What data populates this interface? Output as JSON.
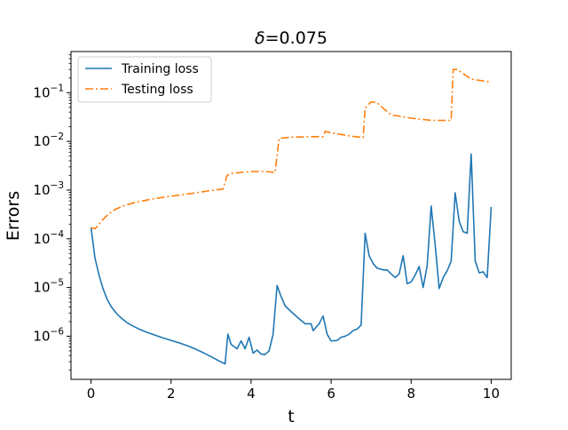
{
  "chart_data": {
    "type": "line",
    "title_symbol": "δ",
    "title_value": "=0.075",
    "xlabel": "t",
    "ylabel": "Errors",
    "xlim": [
      -0.5,
      10.5
    ],
    "ylim": [
      1.3e-07,
      0.7
    ],
    "yscale": "log",
    "grid": false,
    "legend_position": "upper-left",
    "xticks": [
      0,
      2,
      4,
      6,
      8,
      10
    ],
    "xtick_labels": [
      "0",
      "2",
      "4",
      "6",
      "8",
      "10"
    ],
    "yticks": [
      1e-06,
      1e-05,
      0.0001,
      0.001,
      0.01,
      0.1
    ],
    "ytick_bases": [
      "10",
      "10",
      "10",
      "10",
      "10",
      "10"
    ],
    "ytick_exponents": [
      "−6",
      "−5",
      "−4",
      "−3",
      "−2",
      "−1"
    ],
    "series": [
      {
        "name": "Training loss",
        "color": "#1f77b4",
        "style": "solid",
        "points": [
          [
            0.0,
            0.00017
          ],
          [
            0.1,
            4e-05
          ],
          [
            0.2,
            1.8e-05
          ],
          [
            0.3,
            9.5e-06
          ],
          [
            0.4,
            5.8e-06
          ],
          [
            0.5,
            4.1e-06
          ],
          [
            0.6,
            3.2e-06
          ],
          [
            0.7,
            2.6e-06
          ],
          [
            0.8,
            2.2e-06
          ],
          [
            0.9,
            1.9e-06
          ],
          [
            1.0,
            1.7e-06
          ],
          [
            1.2,
            1.4e-06
          ],
          [
            1.4,
            1.2e-06
          ],
          [
            1.6,
            1.05e-06
          ],
          [
            1.8,
            9.2e-07
          ],
          [
            2.0,
            8.2e-07
          ],
          [
            2.2,
            7.3e-07
          ],
          [
            2.4,
            6.4e-07
          ],
          [
            2.6,
            5.5e-07
          ],
          [
            2.8,
            4.6e-07
          ],
          [
            3.0,
            3.8e-07
          ],
          [
            3.2,
            3.1e-07
          ],
          [
            3.35,
            2.7e-07
          ],
          [
            3.42,
            1.1e-06
          ],
          [
            3.5,
            6.8e-07
          ],
          [
            3.65,
            5.5e-07
          ],
          [
            3.75,
            8e-07
          ],
          [
            3.85,
            5.5e-07
          ],
          [
            3.95,
            9.5e-07
          ],
          [
            4.05,
            4.5e-07
          ],
          [
            4.15,
            5.2e-07
          ],
          [
            4.25,
            4.3e-07
          ],
          [
            4.35,
            4.2e-07
          ],
          [
            4.45,
            5e-07
          ],
          [
            4.55,
            1.1e-06
          ],
          [
            4.65,
            1.1e-05
          ],
          [
            4.75,
            6.5e-06
          ],
          [
            4.85,
            4.2e-06
          ],
          [
            5.0,
            3.2e-06
          ],
          [
            5.1,
            2.7e-06
          ],
          [
            5.25,
            2.1e-06
          ],
          [
            5.35,
            1.8e-06
          ],
          [
            5.5,
            1.8e-06
          ],
          [
            5.55,
            1.3e-06
          ],
          [
            5.7,
            1.8e-06
          ],
          [
            5.8,
            2.6e-06
          ],
          [
            5.9,
            1.1e-06
          ],
          [
            6.0,
            8e-07
          ],
          [
            6.15,
            8.2e-07
          ],
          [
            6.25,
            9.5e-07
          ],
          [
            6.35,
            1e-06
          ],
          [
            6.45,
            1.1e-06
          ],
          [
            6.55,
            1.3e-06
          ],
          [
            6.65,
            1.4e-06
          ],
          [
            6.75,
            1.7e-06
          ],
          [
            6.85,
            0.00013
          ],
          [
            6.95,
            4.5e-05
          ],
          [
            7.05,
            3.1e-05
          ],
          [
            7.15,
            2.5e-05
          ],
          [
            7.3,
            2.3e-05
          ],
          [
            7.4,
            2.3e-05
          ],
          [
            7.5,
            1.9e-05
          ],
          [
            7.6,
            1.6e-05
          ],
          [
            7.7,
            1.9e-05
          ],
          [
            7.8,
            4.5e-05
          ],
          [
            7.9,
            1.2e-05
          ],
          [
            8.0,
            1.3e-05
          ],
          [
            8.1,
            1.8e-05
          ],
          [
            8.2,
            2.7e-05
          ],
          [
            8.3,
            1e-05
          ],
          [
            8.4,
            2.8e-05
          ],
          [
            8.5,
            0.00047
          ],
          [
            8.6,
            7.5e-05
          ],
          [
            8.7,
            9.5e-06
          ],
          [
            8.8,
            1.6e-05
          ],
          [
            8.9,
            2.2e-05
          ],
          [
            9.0,
            3.5e-05
          ],
          [
            9.1,
            0.00088
          ],
          [
            9.2,
            0.00023
          ],
          [
            9.3,
            0.00014
          ],
          [
            9.4,
            0.00013
          ],
          [
            9.5,
            0.0055
          ],
          [
            9.6,
            3.5e-05
          ],
          [
            9.7,
            2e-05
          ],
          [
            9.8,
            2.1e-05
          ],
          [
            9.9,
            1.6e-05
          ],
          [
            10.0,
            0.00045
          ]
        ]
      },
      {
        "name": "Testing loss",
        "color": "#ff7f0e",
        "style": "dashdot",
        "points": [
          [
            0.0,
            0.00017
          ],
          [
            0.1,
            0.00016
          ],
          [
            0.2,
            0.0002
          ],
          [
            0.3,
            0.00025
          ],
          [
            0.4,
            0.0003
          ],
          [
            0.5,
            0.00035
          ],
          [
            0.6,
            0.0004
          ],
          [
            0.8,
            0.00047
          ],
          [
            1.0,
            0.00053
          ],
          [
            1.2,
            0.00058
          ],
          [
            1.5,
            0.00065
          ],
          [
            2.0,
            0.00075
          ],
          [
            2.5,
            0.00085
          ],
          [
            3.0,
            0.00098
          ],
          [
            3.3,
            0.00105
          ],
          [
            3.4,
            0.002
          ],
          [
            3.5,
            0.0022
          ],
          [
            4.0,
            0.0024
          ],
          [
            4.4,
            0.0024
          ],
          [
            4.6,
            0.0023
          ],
          [
            4.7,
            0.0115
          ],
          [
            5.0,
            0.0122
          ],
          [
            5.5,
            0.0125
          ],
          [
            5.8,
            0.0125
          ],
          [
            5.85,
            0.016
          ],
          [
            6.0,
            0.015
          ],
          [
            6.5,
            0.0128
          ],
          [
            6.8,
            0.012
          ],
          [
            6.85,
            0.048
          ],
          [
            7.0,
            0.065
          ],
          [
            7.15,
            0.062
          ],
          [
            7.3,
            0.048
          ],
          [
            7.5,
            0.035
          ],
          [
            8.0,
            0.03
          ],
          [
            8.5,
            0.027
          ],
          [
            9.0,
            0.027
          ],
          [
            9.05,
            0.3
          ],
          [
            9.15,
            0.3
          ],
          [
            9.5,
            0.19
          ],
          [
            10.0,
            0.165
          ]
        ]
      }
    ]
  }
}
